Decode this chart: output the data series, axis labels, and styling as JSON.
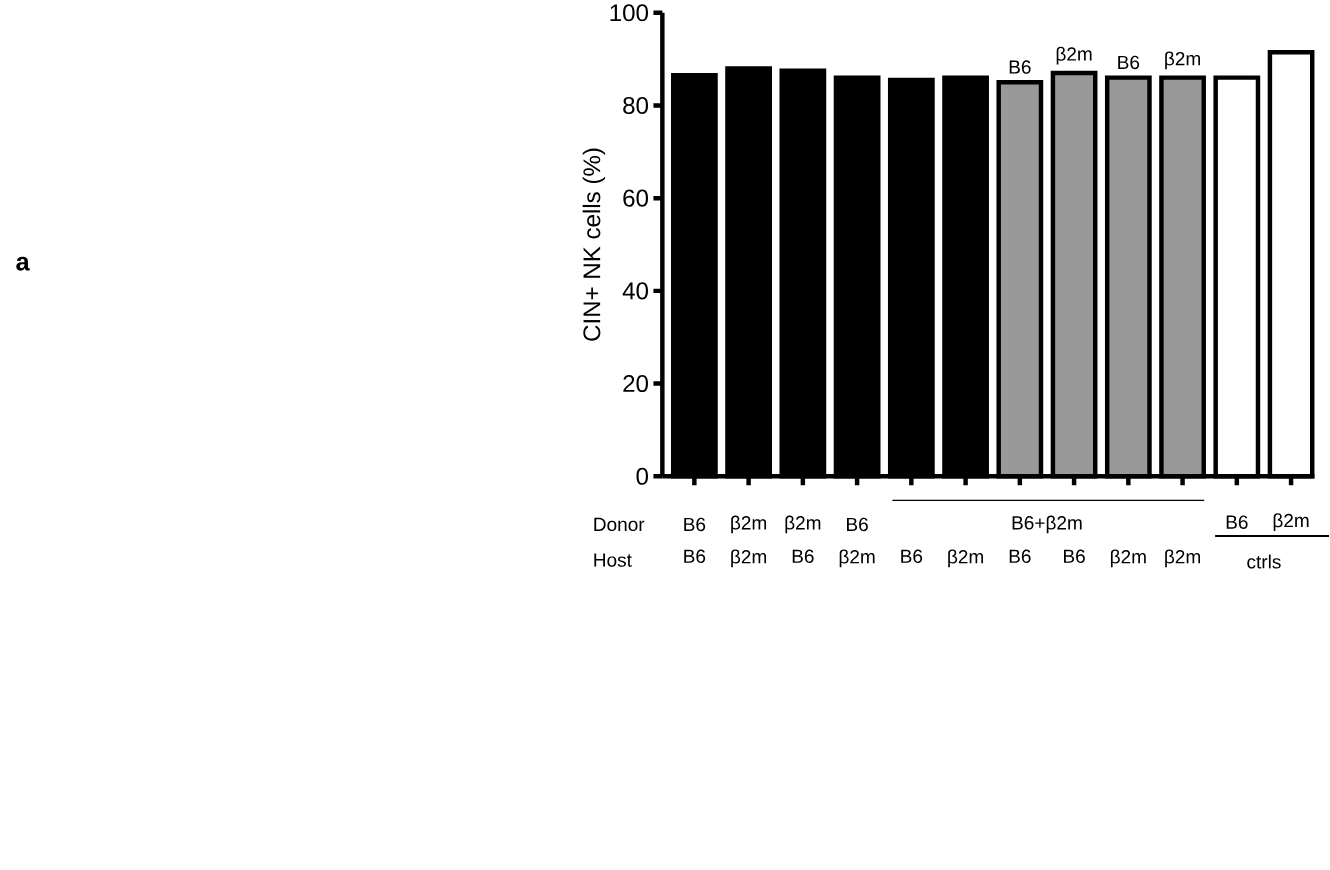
{
  "chart_data": {
    "type": "bar",
    "ylabel": "CIN+ NK cells (%)",
    "categories": [
      "B6",
      "β2m",
      "B6",
      "β2m",
      "B6",
      "β2m",
      "B6",
      "B6",
      "β2m",
      "β2m",
      null,
      null
    ],
    "values": [
      86.5,
      88,
      87.5,
      86,
      85.5,
      86,
      85,
      87,
      86,
      86,
      86,
      91.5
    ],
    "colors": [
      "#000000",
      "#000000",
      "#000000",
      "#000000",
      "#000000",
      "#000000",
      "#999999",
      "#999999",
      "#999999",
      "#999999",
      "#ffffff",
      "#ffffff"
    ],
    "ylim": [
      0,
      100
    ],
    "yticks": [
      0,
      20,
      40,
      60,
      80,
      100
    ],
    "grid": false,
    "annotations": [
      "a",
      "Donor",
      "Host",
      "B6",
      "β2m",
      "β2m",
      "B6",
      "B6+β2m",
      "B6",
      "β2m",
      "B6",
      "β2m",
      "B6",
      "β2m",
      "ctrls"
    ]
  }
}
